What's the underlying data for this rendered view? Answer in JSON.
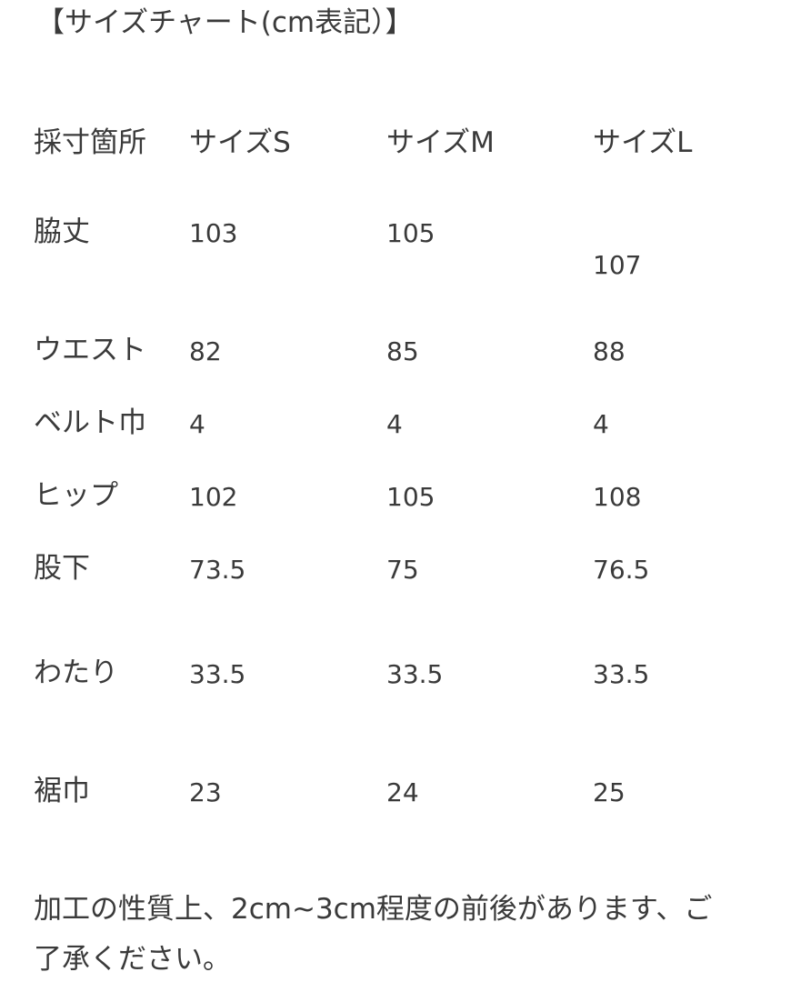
{
  "header": {
    "title": "【サイズチャート(cm表記）】"
  },
  "table": {
    "columns": [
      "採寸箇所",
      "サイズS",
      "サイズM",
      "サイズL"
    ],
    "rows": [
      [
        "脇丈",
        "103",
        "105",
        "107"
      ],
      [
        "ウエスト",
        "82",
        "85",
        "88"
      ],
      [
        "ベルト巾",
        "4",
        "4",
        "4"
      ],
      [
        "ヒップ",
        "102",
        "105",
        "108"
      ],
      [
        "股下",
        "73.5",
        "75",
        "76.5"
      ],
      [
        "わたり",
        "33.5",
        "33.5",
        "33.5"
      ],
      [
        "裾巾",
        "23",
        "24",
        "25"
      ]
    ]
  },
  "note": [
    "加工の性質上、2cm~3cm程度の前後があります、ご",
    "了承ください。"
  ]
}
